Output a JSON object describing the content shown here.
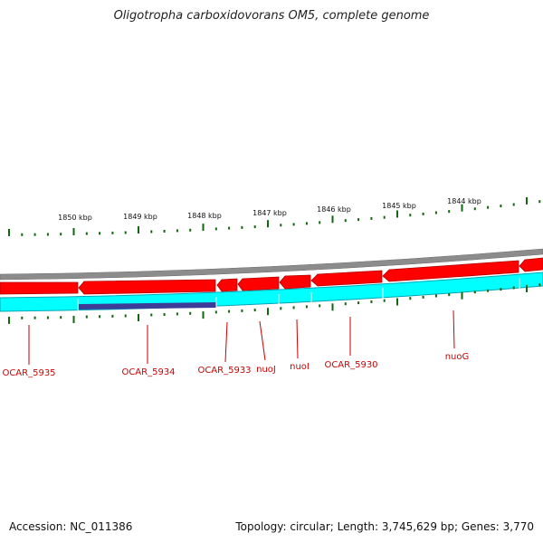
{
  "title": "Oligotropha carboxidovorans OM5, complete genome",
  "footer": {
    "accession": "Accession: NC_011386",
    "summary": "Topology: circular; Length: 3,745,629 bp; Genes: 3,770"
  },
  "colors": {
    "backbone": "#8c8c8c",
    "gene_forward": "#ff0000",
    "gene_edge": "#b00000",
    "cds_band": "#00ffff",
    "cds_edge": "#00a5b5",
    "highlight": "#3d3d99",
    "tick": "#116611",
    "label": "#cc0000"
  },
  "kbp_ticks": [
    {
      "label": "1850 kbp"
    },
    {
      "label": "1849 kbp"
    },
    {
      "label": "1848 kbp"
    },
    {
      "label": "1847 kbp"
    },
    {
      "label": "1846 kbp"
    },
    {
      "label": "1845 kbp"
    },
    {
      "label": "1844 kbp"
    }
  ],
  "genes": [
    {
      "label": "OCAR_5935"
    },
    {
      "label": "OCAR_5934"
    },
    {
      "label": "OCAR_5933"
    },
    {
      "label": "nuoJ"
    },
    {
      "label": "nuoI"
    },
    {
      "label": "OCAR_5930"
    },
    {
      "label": "nuoG"
    }
  ]
}
